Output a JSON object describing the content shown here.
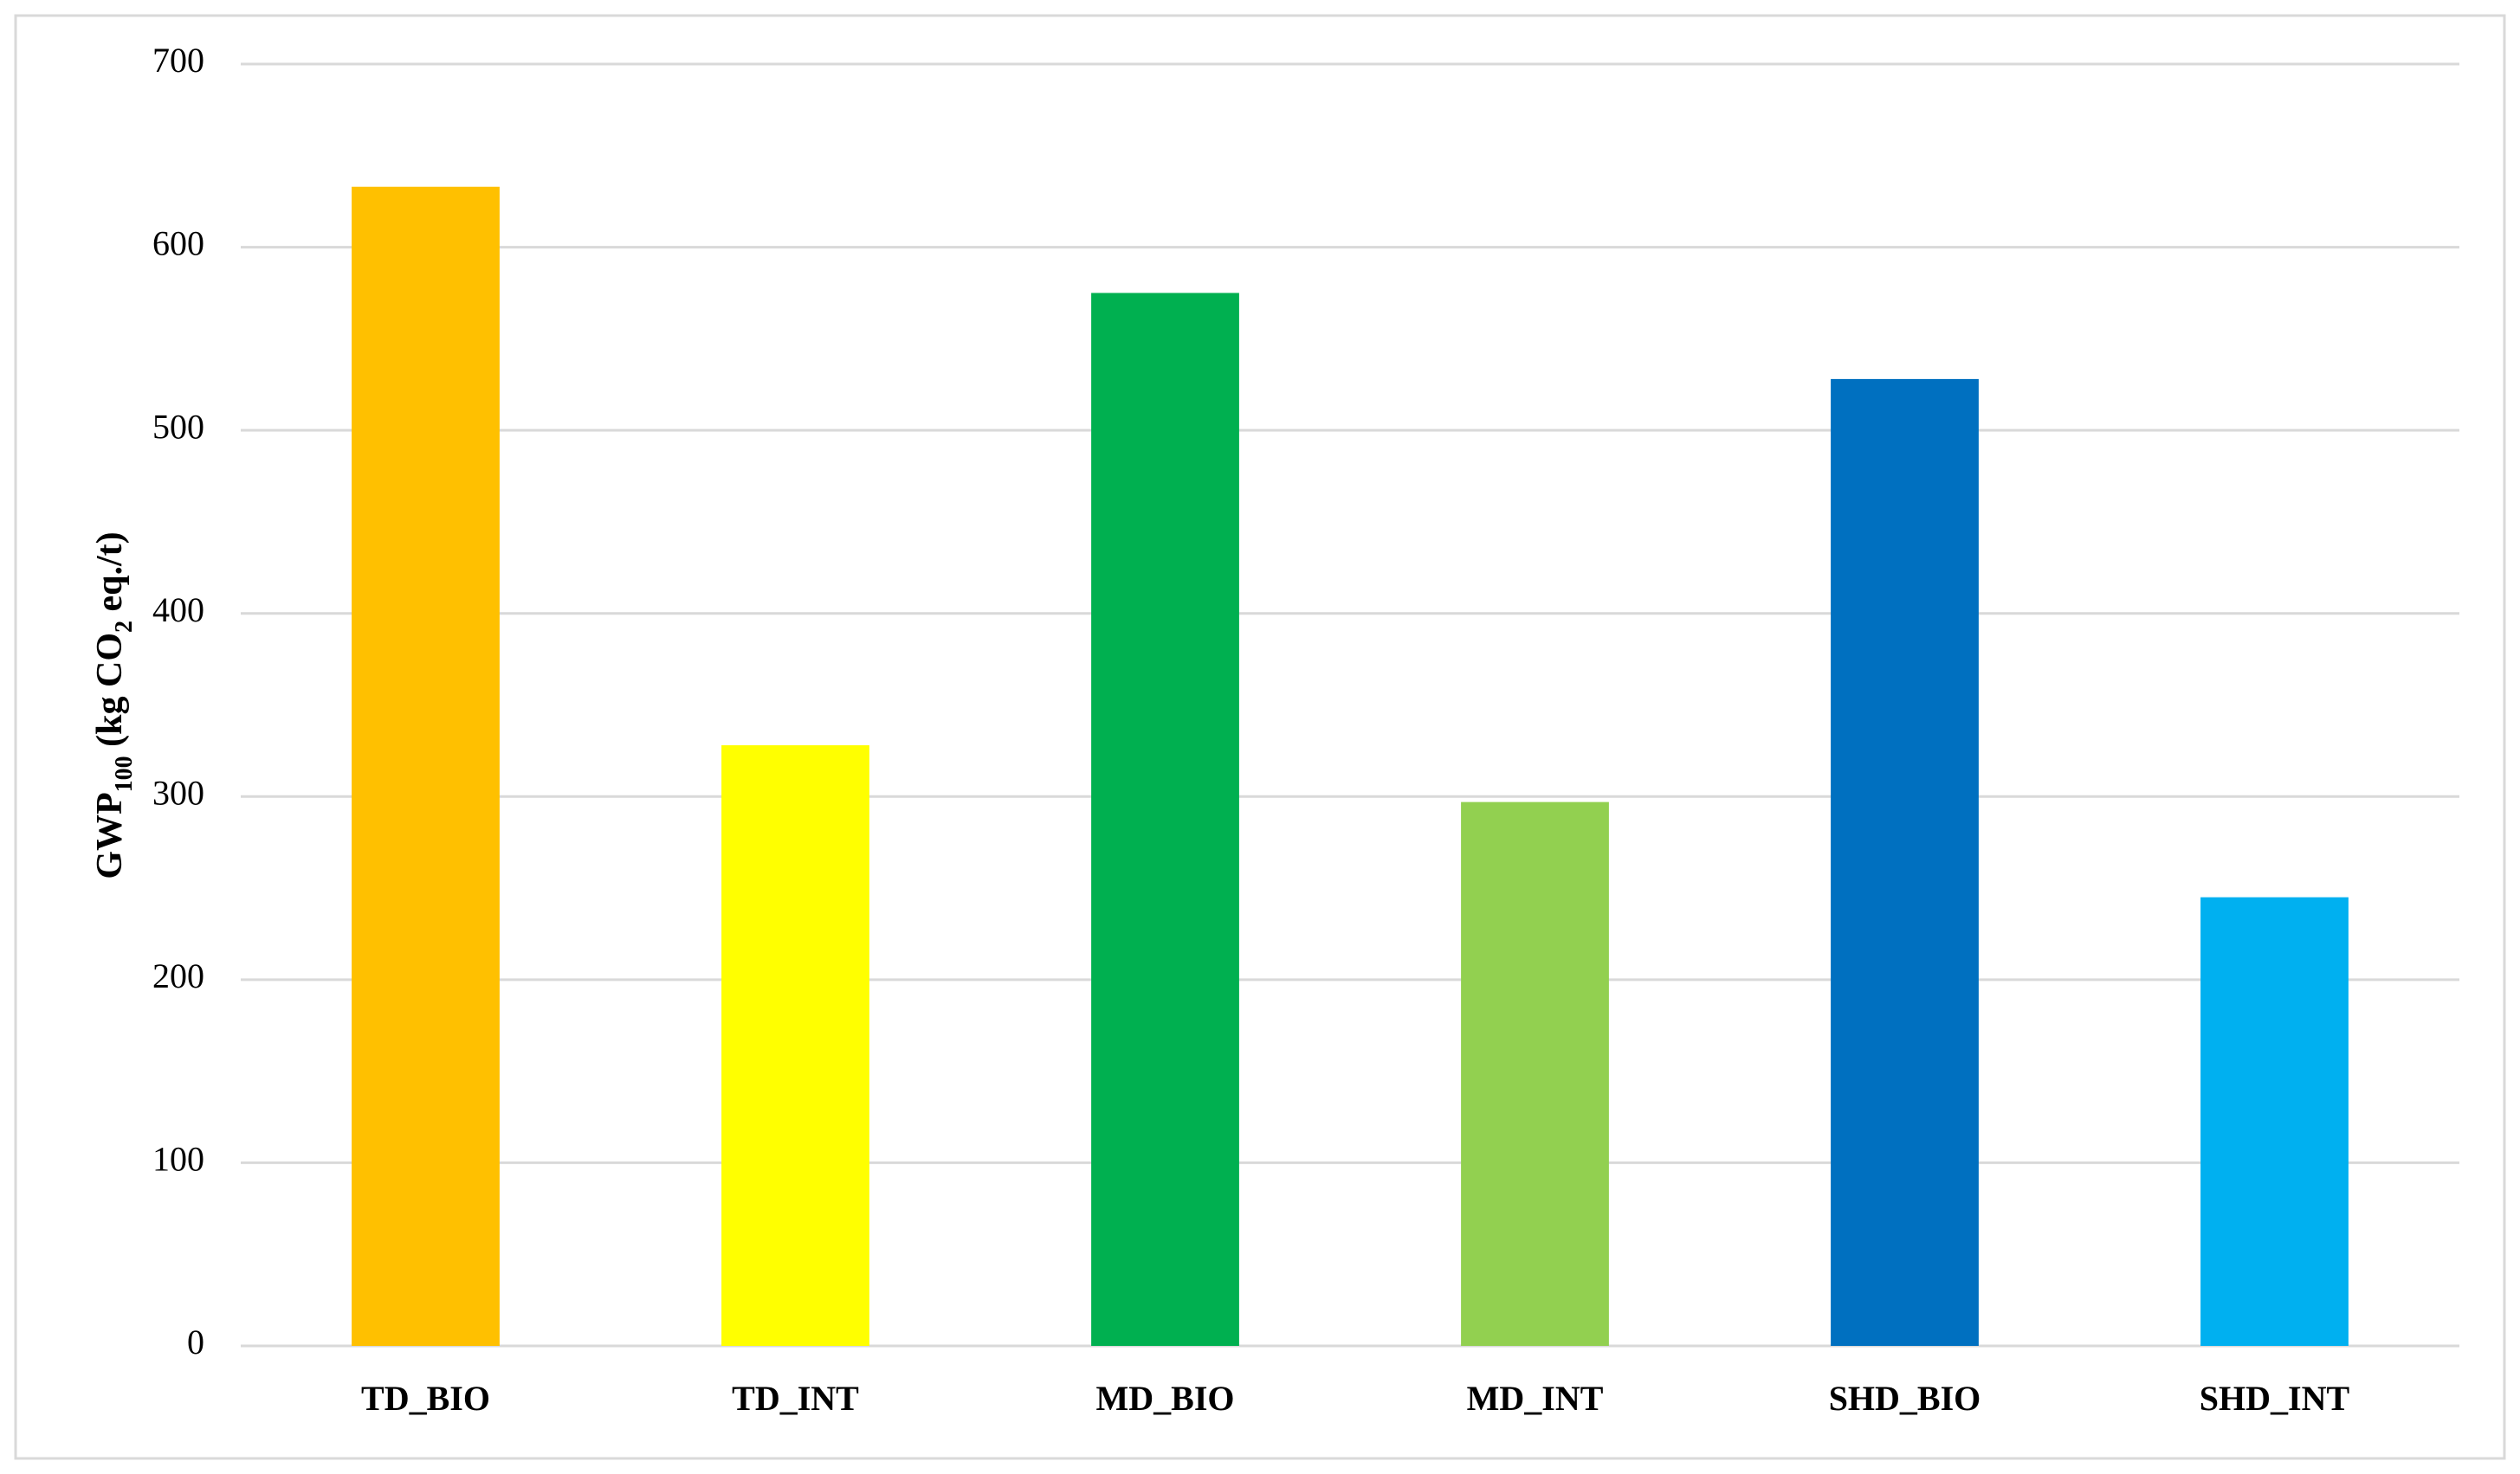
{
  "chart_data": {
    "type": "bar",
    "y_label": "GWP100 (kg CO2 eq./t)",
    "categories": [
      "TD_BIO",
      "TD_INT",
      "MD_BIO",
      "MD_INT",
      "SHD_BIO",
      "SHD_INT"
    ],
    "values": [
      633,
      328,
      575,
      297,
      528,
      245
    ],
    "colors": [
      "#ffc000",
      "#ffff00",
      "#00b050",
      "#92d050",
      "#0070c0",
      "#00b0f0"
    ],
    "ylim": [
      0,
      700
    ],
    "yticks": [
      0,
      100,
      200,
      300,
      400,
      500,
      600,
      700
    ],
    "grid": true
  }
}
